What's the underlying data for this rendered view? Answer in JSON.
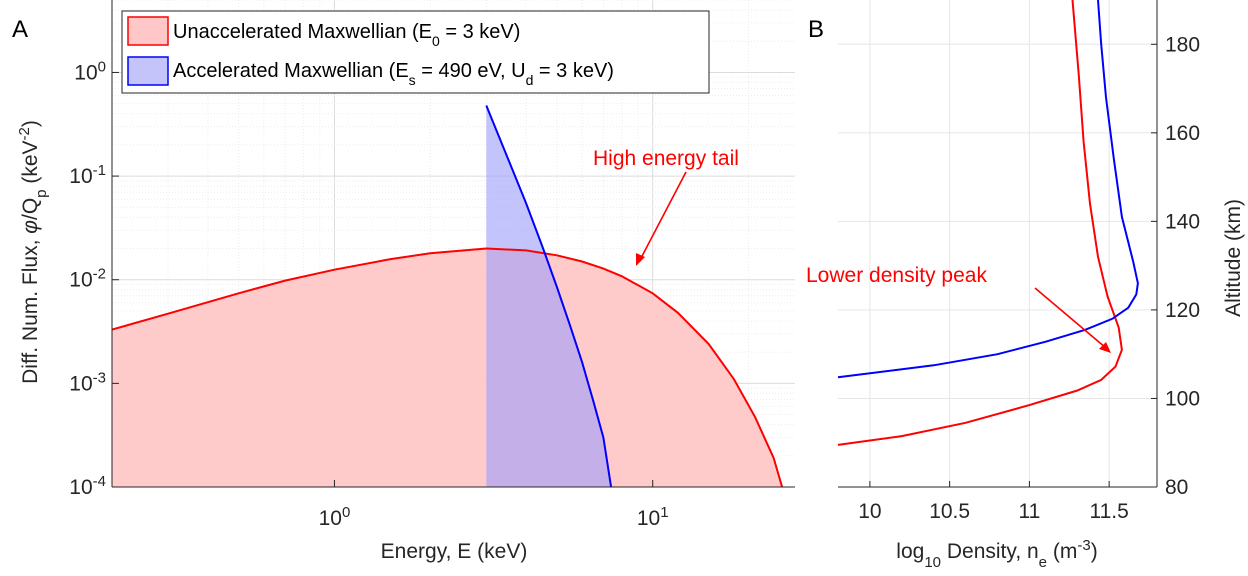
{
  "panels": {
    "a_letter": "A",
    "b_letter": "B"
  },
  "colors": {
    "red": "#ff0000",
    "blue": "#0000ff",
    "red_fill": "#ffc7c7",
    "blue_fill": "#9d9dfb",
    "grid": "#e6e6e6",
    "axis": "#262626"
  },
  "chart_data": [
    {
      "type": "area",
      "panel": "A",
      "xlabel": "Energy, E (keV)",
      "ylabel": "Diff. Num. Flux, φ/Q_p (keV^-2)",
      "xscale": "log",
      "yscale": "log",
      "xlim": [
        0.2,
        28
      ],
      "ylim": [
        0.0001,
        5
      ],
      "grid": true,
      "legend_position": "top-left",
      "x_ticks": [
        {
          "value": 1,
          "base": "10",
          "exp": "0"
        },
        {
          "value": 10,
          "base": "10",
          "exp": "1"
        }
      ],
      "y_ticks": [
        {
          "value": 0.0001,
          "base": "10",
          "exp": "-4"
        },
        {
          "value": 0.001,
          "base": "10",
          "exp": "-3"
        },
        {
          "value": 0.01,
          "base": "10",
          "exp": "-2"
        },
        {
          "value": 0.1,
          "base": "10",
          "exp": "-1"
        },
        {
          "value": 1,
          "base": "10",
          "exp": "0"
        }
      ],
      "series": [
        {
          "name": "Unaccelerated Maxwellian (E_0 = 3 keV)",
          "color": "#ff0000",
          "fill": "#ffc7c7",
          "x": [
            0.2,
            0.3,
            0.5,
            0.7,
            1.0,
            1.5,
            2.0,
            3.0,
            4.0,
            5.0,
            6.0,
            7.0,
            8.0,
            10.0,
            12.0,
            15.0,
            18.0,
            21.0,
            24.0,
            25.5
          ],
          "y": [
            0.0033,
            0.0047,
            0.0074,
            0.0098,
            0.0125,
            0.0158,
            0.018,
            0.02,
            0.0192,
            0.0172,
            0.015,
            0.0128,
            0.0108,
            0.0074,
            0.0048,
            0.0024,
            0.0011,
            0.00047,
            0.00019,
            0.0001
          ]
        },
        {
          "name": "Accelerated Maxwellian (E_s = 490 eV, U_d = 3 keV)",
          "color": "#0000ff",
          "fill": "#9d9dfb",
          "x": [
            3.0,
            3.5,
            4.0,
            4.5,
            5.0,
            5.5,
            6.0,
            6.5,
            7.0,
            7.4
          ],
          "y": [
            0.48,
            0.15,
            0.055,
            0.021,
            0.0085,
            0.0036,
            0.0016,
            0.00068,
            0.0003,
            0.0001
          ]
        }
      ],
      "annotations": [
        {
          "text": "High energy tail",
          "color": "#ff0000",
          "points_to": {
            "x": 9.0,
            "y": 0.009
          }
        }
      ]
    },
    {
      "type": "line",
      "panel": "B",
      "xlabel": "log_10 Density, n_e (m^-3)",
      "ylabel": "Altitude (km)",
      "xlim": [
        9.8,
        11.8
      ],
      "ylim": [
        80,
        190
      ],
      "grid": true,
      "y_axis_side": "right",
      "x_ticks": [
        "10",
        "10.5",
        "11",
        "11.5"
      ],
      "y_ticks": [
        "80",
        "100",
        "120",
        "140",
        "160",
        "180"
      ],
      "series": [
        {
          "color": "#ff0000",
          "x": [
            9.8,
            10.2,
            10.6,
            11.0,
            11.3,
            11.45,
            11.54,
            11.58,
            11.56,
            11.49,
            11.43,
            11.38,
            11.34,
            11.31,
            11.27
          ],
          "y": [
            89.5,
            91.5,
            94.5,
            98.5,
            101.8,
            104.2,
            107.2,
            111.0,
            116.0,
            123.0,
            132.0,
            144.0,
            158.0,
            173.0,
            190.0
          ]
        },
        {
          "color": "#0000ff",
          "x": [
            9.8,
            10.4,
            10.8,
            11.1,
            11.35,
            11.52,
            11.62,
            11.67,
            11.68,
            11.65,
            11.58,
            11.53,
            11.48,
            11.45,
            11.43
          ],
          "y": [
            104.8,
            107.5,
            110.0,
            112.8,
            115.5,
            118.0,
            120.5,
            123.5,
            126.0,
            131.0,
            141.0,
            154.0,
            168.0,
            180.0,
            190.0
          ]
        }
      ],
      "annotations": [
        {
          "text": "Lower density peak",
          "color": "#ff0000",
          "points_to": {
            "x": 11.52,
            "y": 109.5
          }
        }
      ]
    }
  ]
}
